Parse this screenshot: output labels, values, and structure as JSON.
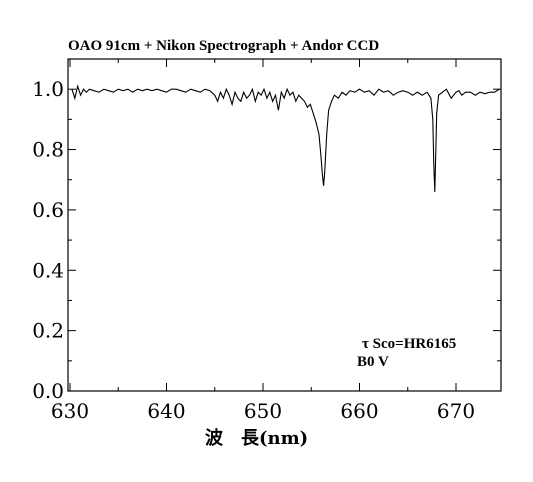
{
  "chart_data": {
    "type": "line",
    "title": "OAO 91cm + Nikon Spectrograph + Andor CCD",
    "xlabel": "波　長(nm)",
    "ylabel": "",
    "xlim": [
      630,
      675
    ],
    "ylim": [
      0.0,
      1.1
    ],
    "xticks": [
      630,
      640,
      650,
      660,
      670
    ],
    "xtick_labels": [
      "630",
      "640",
      "650",
      "660",
      "670"
    ],
    "yticks": [
      0.0,
      0.2,
      0.4,
      0.6,
      0.8,
      1.0
    ],
    "ytick_labels": [
      "0.0",
      "0.2",
      "0.4",
      "0.6",
      "0.8",
      "1.0"
    ],
    "grid": false,
    "legend": "none",
    "annotations": [
      {
        "text": "τ Sco=HR6165",
        "x": 670.0,
        "y": 0.16
      },
      {
        "text": "B0 V",
        "x": 670.0,
        "y": 0.095
      }
    ],
    "series": [
      {
        "color": "#000000",
        "x": [
          630.2,
          630.5,
          630.8,
          631.1,
          631.4,
          631.7,
          632.0,
          632.5,
          633.0,
          633.5,
          634.0,
          634.5,
          635.0,
          635.5,
          636.0,
          636.5,
          637.0,
          637.5,
          638.0,
          638.5,
          639.0,
          639.5,
          640.0,
          640.5,
          641.0,
          641.5,
          642.0,
          642.5,
          643.0,
          643.5,
          644.0,
          644.5,
          645.0,
          645.3,
          645.6,
          645.9,
          646.2,
          646.5,
          646.8,
          647.1,
          647.4,
          647.7,
          648.0,
          648.3,
          648.6,
          648.9,
          649.2,
          649.5,
          649.8,
          650.1,
          650.4,
          650.7,
          651.0,
          651.3,
          651.6,
          651.9,
          652.2,
          652.5,
          652.8,
          653.1,
          653.4,
          653.7,
          654.0,
          654.3,
          654.6,
          654.9,
          655.2,
          655.5,
          655.8,
          656.0,
          656.15,
          656.28,
          656.4,
          656.6,
          656.8,
          657.1,
          657.4,
          657.8,
          658.2,
          658.6,
          659.0,
          659.5,
          660.0,
          660.5,
          661.0,
          661.5,
          662.0,
          662.5,
          663.0,
          663.5,
          664.0,
          664.5,
          665.0,
          665.5,
          666.0,
          666.5,
          667.0,
          667.4,
          667.6,
          667.7,
          667.8,
          667.9,
          668.0,
          668.2,
          668.6,
          669.0,
          669.5,
          670.0,
          670.3,
          670.6,
          671.0,
          671.5,
          672.0,
          672.5,
          673.0,
          673.5,
          674.0,
          674.5
        ],
        "y": [
          1.0,
          0.97,
          1.01,
          0.98,
          1.0,
          0.99,
          1.0,
          0.995,
          0.99,
          1.0,
          0.995,
          0.99,
          1.0,
          0.995,
          1.0,
          0.99,
          1.0,
          0.995,
          1.0,
          0.995,
          1.0,
          0.995,
          0.99,
          1.0,
          1.0,
          0.995,
          0.99,
          1.0,
          0.995,
          0.99,
          1.0,
          0.995,
          0.98,
          0.96,
          0.99,
          0.97,
          1.0,
          0.98,
          0.95,
          0.99,
          0.97,
          0.96,
          0.99,
          0.97,
          0.98,
          1.0,
          0.96,
          0.99,
          0.98,
          1.0,
          0.97,
          0.99,
          0.96,
          0.98,
          0.93,
          0.99,
          0.97,
          1.0,
          0.98,
          0.99,
          0.96,
          0.98,
          0.97,
          0.96,
          0.94,
          0.95,
          0.92,
          0.89,
          0.85,
          0.78,
          0.72,
          0.68,
          0.73,
          0.85,
          0.93,
          0.96,
          0.98,
          0.97,
          0.99,
          0.98,
          0.995,
          0.99,
          1.0,
          0.99,
          0.995,
          0.98,
          1.0,
          0.99,
          0.995,
          0.98,
          0.99,
          0.995,
          0.99,
          0.98,
          0.99,
          0.98,
          0.99,
          0.97,
          0.9,
          0.75,
          0.66,
          0.78,
          0.92,
          0.98,
          0.99,
          1.0,
          0.97,
          0.99,
          0.995,
          0.98,
          0.99,
          0.99,
          0.98,
          0.99,
          0.985,
          0.99,
          0.99,
          1.0
        ]
      }
    ]
  }
}
